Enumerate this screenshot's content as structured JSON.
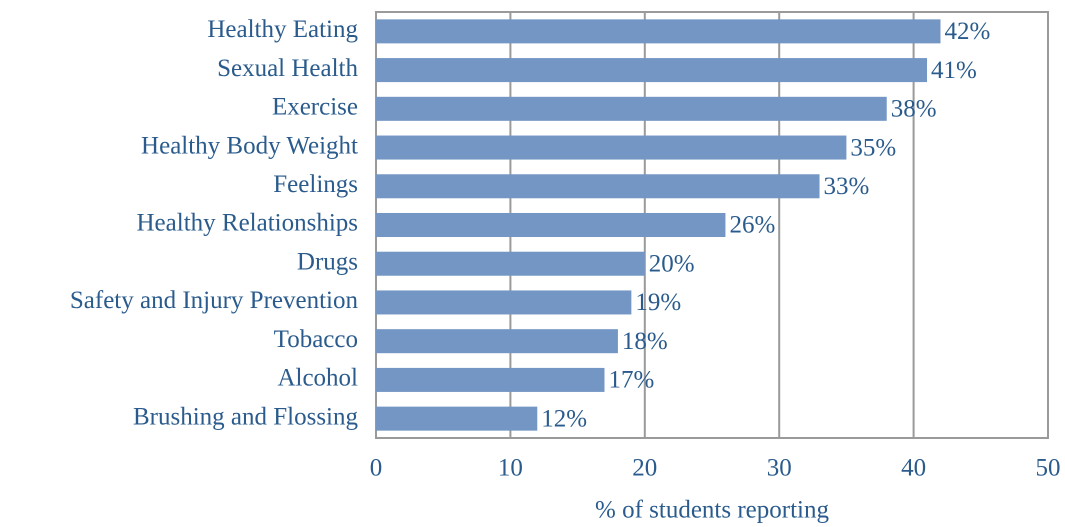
{
  "chart_data": {
    "type": "hbar",
    "xlabel": "% of students reporting",
    "categories": [
      "Healthy Eating",
      "Sexual Health",
      "Exercise",
      "Healthy Body Weight",
      "Feelings",
      "Healthy Relationships",
      "Drugs",
      "Safety and Injury Prevention",
      "Tobacco",
      "Alcohol",
      "Brushing and Flossing"
    ],
    "values": [
      42,
      41,
      38,
      35,
      33,
      26,
      20,
      19,
      18,
      17,
      12
    ],
    "value_labels": [
      "42%",
      "41%",
      "38%",
      "35%",
      "33%",
      "26%",
      "20%",
      "19%",
      "18%",
      "17%",
      "12%"
    ],
    "color": "#7396c4",
    "xlim": [
      0,
      50
    ],
    "xticks": [
      0,
      10,
      20,
      30,
      40,
      50
    ],
    "grid": true
  }
}
